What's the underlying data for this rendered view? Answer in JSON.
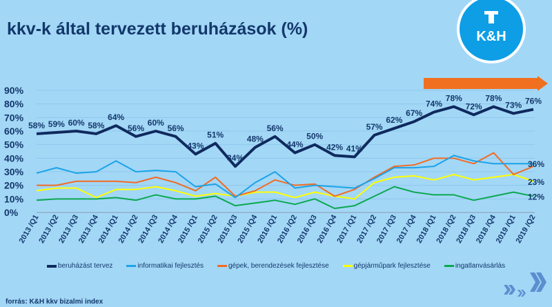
{
  "title": "kkv-k által tervezett beruházások (%)",
  "logo": {
    "text": "K&H"
  },
  "source": "forrás: K&H kkv bizalmi index",
  "colors": {
    "background": "#a3d7f6",
    "title": "#13386b",
    "arrow": "#f07020"
  },
  "chart_data": {
    "type": "line",
    "title": "kkv-k által tervezett beruházások (%)",
    "ylim": [
      0,
      90
    ],
    "yticks": [
      "0%",
      "10%",
      "20%",
      "30%",
      "40%",
      "50%",
      "60%",
      "70%",
      "80%",
      "90%"
    ],
    "grid": true,
    "legend_placement": "bottom",
    "categories": [
      "2013 /Q1",
      "2013 /Q2",
      "2013 /Q3",
      "2013 /Q4",
      "2014 /Q1",
      "2014 /Q2",
      "2014 /Q3",
      "2014 /Q4",
      "2015 /Q1",
      "2015 /Q2",
      "2015 /Q3",
      "2015 /Q4",
      "2016 /Q1",
      "2016 /Q2",
      "2016 /Q3",
      "2016 /Q4",
      "2017 /Q1",
      "2017 /Q2",
      "2017 /Q3",
      "2017 /Q4",
      "2018 /Q1",
      "2018 /Q2",
      "2018 /Q3",
      "2018 /Q4",
      "2019 /Q1",
      "2019 /Q2"
    ],
    "series": [
      {
        "name": "beruházást tervez",
        "color": "#0f2a5e",
        "width": 4,
        "labels": "all",
        "values": [
          58,
          59,
          60,
          58,
          64,
          56,
          60,
          56,
          43,
          51,
          34,
          48,
          56,
          44,
          50,
          42,
          41,
          57,
          62,
          67,
          74,
          78,
          72,
          78,
          73,
          76
        ]
      },
      {
        "name": "informatikai fejlesztés",
        "color": "#1aa3e8",
        "width": 2,
        "labels": "last",
        "last_label": "36%",
        "values": [
          29,
          33,
          29,
          30,
          38,
          30,
          31,
          30,
          19,
          21,
          11,
          22,
          30,
          18,
          20,
          19,
          18,
          25,
          33,
          33,
          34,
          42,
          38,
          36,
          36,
          36
        ]
      },
      {
        "name": "gépek, berendezések fejlesztése",
        "color": "#f26b22",
        "width": 2,
        "labels": "none",
        "values": [
          20,
          20,
          23,
          23,
          23,
          22,
          26,
          22,
          16,
          26,
          12,
          16,
          24,
          20,
          21,
          12,
          17,
          26,
          34,
          35,
          40,
          40,
          36,
          44,
          28,
          34
        ]
      },
      {
        "name": "gépjárműpark fejlesztése",
        "color": "#ffff00",
        "width": 2,
        "labels": "last",
        "last_label": "23%",
        "values": [
          16,
          18,
          18,
          11,
          17,
          17,
          19,
          16,
          12,
          14,
          12,
          15,
          15,
          11,
          15,
          12,
          10,
          22,
          26,
          27,
          24,
          28,
          24,
          26,
          28,
          23
        ]
      },
      {
        "name": "ingatlanvásárlás",
        "color": "#0aa84f",
        "width": 2,
        "labels": "last",
        "last_label": "12%",
        "values": [
          9,
          10,
          10,
          10,
          11,
          9,
          13,
          10,
          10,
          12,
          5,
          7,
          9,
          6,
          10,
          3,
          5,
          12,
          19,
          15,
          13,
          13,
          9,
          12,
          15,
          12
        ]
      }
    ]
  }
}
